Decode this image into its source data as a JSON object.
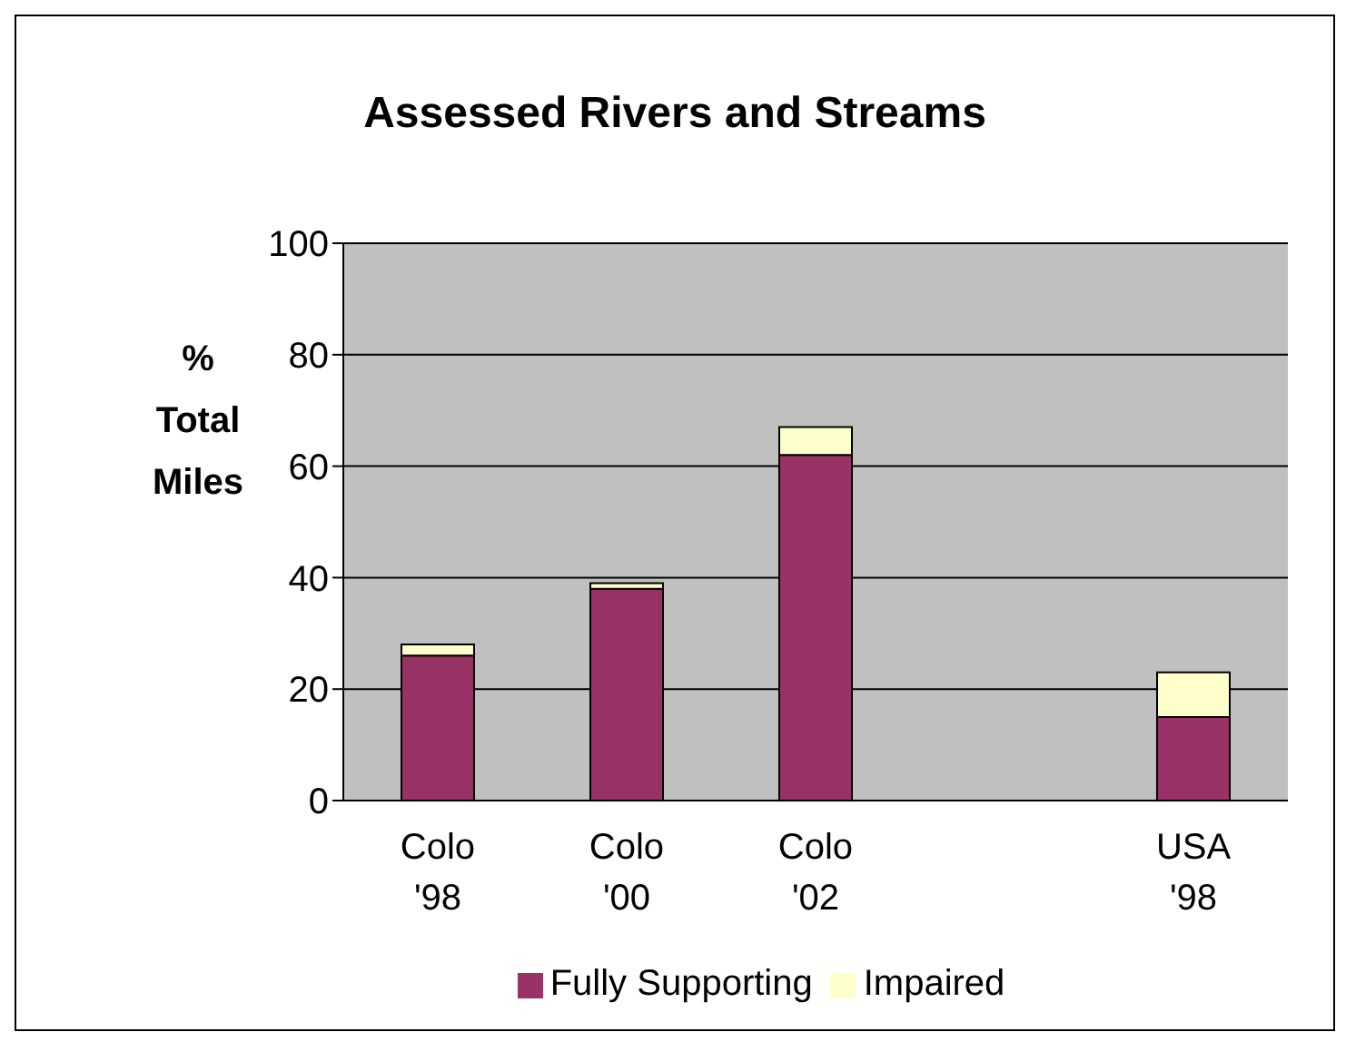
{
  "chart_data": {
    "type": "bar",
    "title": "Assessed Rivers and Streams",
    "ylabel": "% Total Miles",
    "categories": [
      "Colo '98",
      "Colo '00",
      "Colo '02",
      null,
      "USA '98"
    ],
    "series": [
      {
        "name": "Fully Supporting",
        "color": "#993366",
        "values": [
          26,
          38,
          62,
          null,
          15
        ]
      },
      {
        "name": "Impaired",
        "color": "#ffffcc",
        "values": [
          2,
          1,
          5,
          null,
          8
        ]
      }
    ],
    "stacked": true,
    "ylim": [
      0,
      100
    ],
    "yticks": [
      0,
      20,
      40,
      60,
      80,
      100
    ],
    "grid": "y",
    "legend": "bottom"
  }
}
